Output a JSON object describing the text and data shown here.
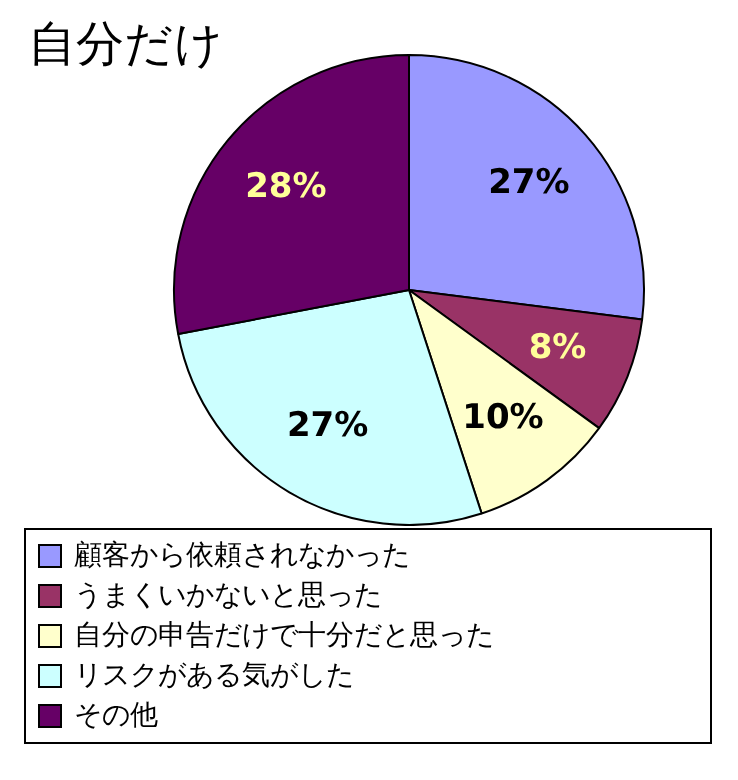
{
  "chart_data": {
    "type": "pie",
    "title": "自分だけ",
    "categories": [
      "顧客から依頼されなかった",
      "うまくいかないと思った",
      "自分の申告だけで十分だと思った",
      "リスクがある気がした",
      "その他"
    ],
    "values": [
      27,
      8,
      10,
      27,
      28
    ],
    "colors": [
      "#9999ff",
      "#993366",
      "#ffffcc",
      "#ccffff",
      "#660066"
    ],
    "value_labels": [
      "27%",
      "8%",
      "10%",
      "27%",
      "28%"
    ],
    "legend": "bottom"
  }
}
